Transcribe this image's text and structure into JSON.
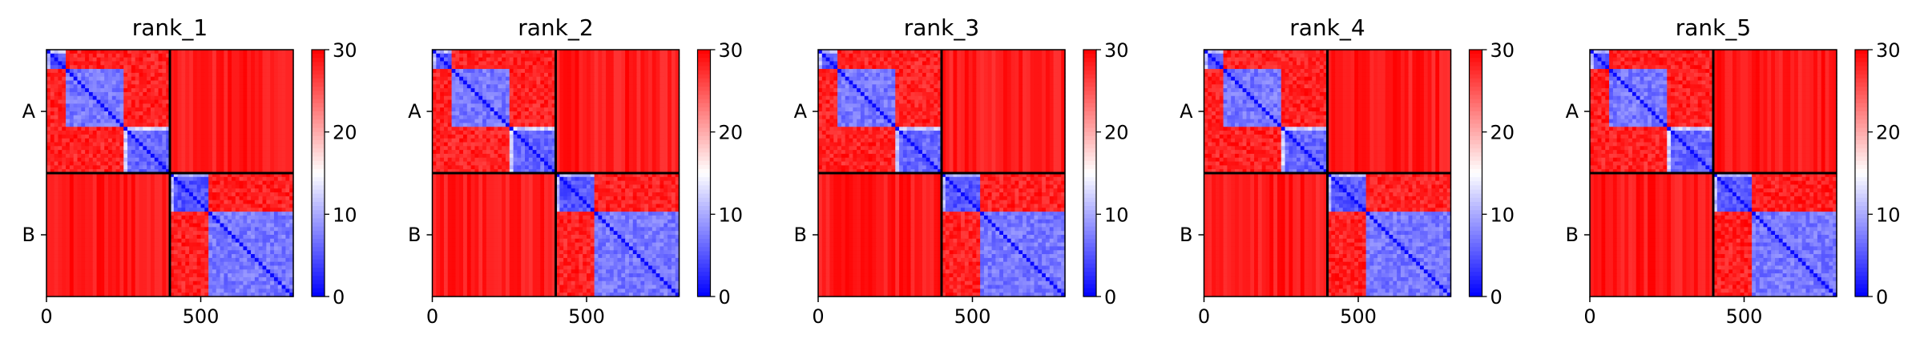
{
  "chart_data": {
    "type": "heatmap",
    "subtype": "predicted-aligned-error matrix with colorbar",
    "x_range": [
      0,
      800
    ],
    "x_ticks": [
      0,
      500
    ],
    "x_tick_labels": [
      "0",
      "500"
    ],
    "chain_ticks": [
      "A",
      "B"
    ],
    "chain_boundary": 400,
    "colorbar": {
      "min": 0,
      "max": 30,
      "ticks": [
        0,
        10,
        20,
        30
      ],
      "tick_labels": [
        "0",
        "10",
        "20",
        "30"
      ],
      "colormap": "bwr",
      "colors": {
        "low": "#0000ff",
        "mid": "#ffffff",
        "high": "#ff0000"
      }
    },
    "domains": [
      {
        "start": 0,
        "end": 60,
        "level": 3
      },
      {
        "start": 60,
        "end": 255,
        "level": 5
      },
      {
        "start": 255,
        "end": 400,
        "level": 4
      },
      {
        "start": 400,
        "end": 520,
        "level": 3
      },
      {
        "start": 520,
        "end": 800,
        "level": 5
      }
    ],
    "panels": [
      {
        "title": "rank_1"
      },
      {
        "title": "rank_2"
      },
      {
        "title": "rank_3"
      },
      {
        "title": "rank_4"
      },
      {
        "title": "rank_5"
      }
    ]
  }
}
